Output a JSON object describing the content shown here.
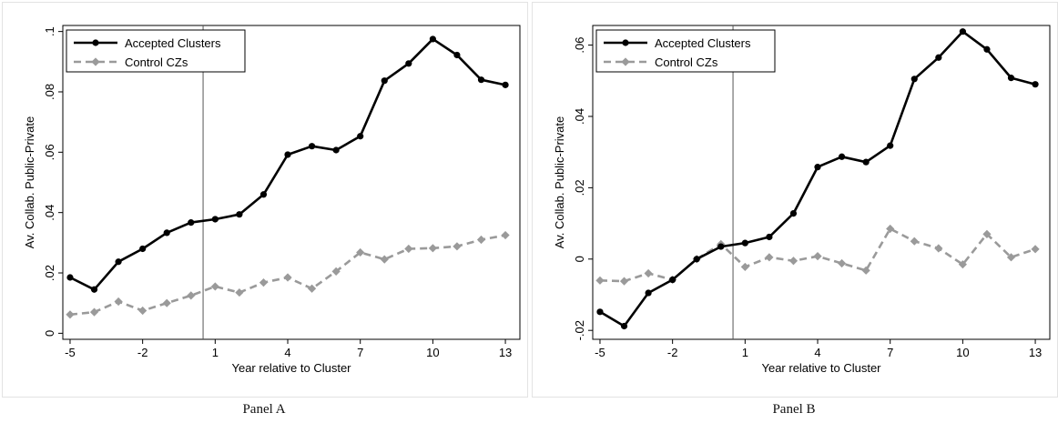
{
  "captions": [
    "Panel A",
    "Panel B"
  ],
  "colors": {
    "accepted": "#000000",
    "control": "#9a9a9a",
    "grid": "#ffffff",
    "frame": "#000000"
  },
  "chart_data": [
    {
      "type": "line",
      "title": "",
      "xlabel": "Year relative to Cluster",
      "ylabel": "Av. Collab. Public-Private",
      "x": [
        -5,
        -4,
        -3,
        -2,
        -1,
        0,
        1,
        2,
        3,
        4,
        5,
        6,
        7,
        8,
        9,
        10,
        11,
        12,
        13
      ],
      "xticks": [
        -5,
        -2,
        1,
        4,
        7,
        10,
        13
      ],
      "xtick_labels": [
        "-5",
        "-2",
        "1",
        "4",
        "7",
        "10",
        "13"
      ],
      "yticks": [
        0,
        0.02,
        0.04,
        0.06,
        0.08,
        0.1
      ],
      "ytick_labels": [
        "0",
        ".02",
        ".04",
        ".06",
        ".08",
        ".1"
      ],
      "ylim": [
        -0.002,
        0.102
      ],
      "xlim": [
        -5.3,
        13.6
      ],
      "vline": 0.5,
      "legend_position": "top-left",
      "series": [
        {
          "name": "Accepted Clusters",
          "style": "solid",
          "marker": "circle",
          "values": [
            0.0185,
            0.0145,
            0.0237,
            0.028,
            0.0333,
            0.0367,
            0.0378,
            0.0394,
            0.046,
            0.0592,
            0.062,
            0.0607,
            0.0653,
            0.0837,
            0.0894,
            0.0975,
            0.0922,
            0.084,
            0.0823
          ]
        },
        {
          "name": "Control CZs",
          "style": "dashed",
          "marker": "diamond",
          "values": [
            0.0062,
            0.007,
            0.0105,
            0.0075,
            0.01,
            0.0125,
            0.0155,
            0.0135,
            0.0168,
            0.0185,
            0.0148,
            0.0205,
            0.0268,
            0.0245,
            0.028,
            0.0282,
            0.0288,
            0.031,
            0.0325
          ]
        }
      ]
    },
    {
      "type": "line",
      "title": "",
      "xlabel": "Year relative to Cluster",
      "ylabel": "Av. Collab. Public-Private",
      "x": [
        -5,
        -4,
        -3,
        -2,
        -1,
        0,
        1,
        2,
        3,
        4,
        5,
        6,
        7,
        8,
        9,
        10,
        11,
        12,
        13
      ],
      "xticks": [
        -5,
        -2,
        1,
        4,
        7,
        10,
        13
      ],
      "xtick_labels": [
        "-5",
        "-2",
        "1",
        "4",
        "7",
        "10",
        "13"
      ],
      "yticks": [
        -0.02,
        0,
        0.02,
        0.04,
        0.06
      ],
      "ytick_labels": [
        "-.02",
        "0",
        ".02",
        ".04",
        ".06"
      ],
      "ylim": [
        -0.0225,
        0.0655
      ],
      "xlim": [
        -5.3,
        13.6
      ],
      "vline": 0.5,
      "legend_position": "top-left",
      "series": [
        {
          "name": "Accepted Clusters",
          "style": "solid",
          "marker": "circle",
          "values": [
            -0.0148,
            -0.0188,
            -0.0095,
            -0.0058,
            0.0,
            0.0035,
            0.0045,
            0.0062,
            0.0128,
            0.0258,
            0.0287,
            0.0272,
            0.0318,
            0.0505,
            0.0565,
            0.0638,
            0.0588,
            0.0508,
            0.049
          ]
        },
        {
          "name": "Control CZs",
          "style": "dashed",
          "marker": "diamond",
          "values": [
            -0.006,
            -0.0062,
            -0.004,
            -0.0058,
            0.0,
            0.0042,
            -0.0022,
            0.0005,
            -0.0005,
            0.0008,
            -0.0012,
            -0.0032,
            0.0085,
            0.005,
            0.003,
            -0.0015,
            0.007,
            0.0005,
            0.0028
          ]
        }
      ]
    }
  ]
}
